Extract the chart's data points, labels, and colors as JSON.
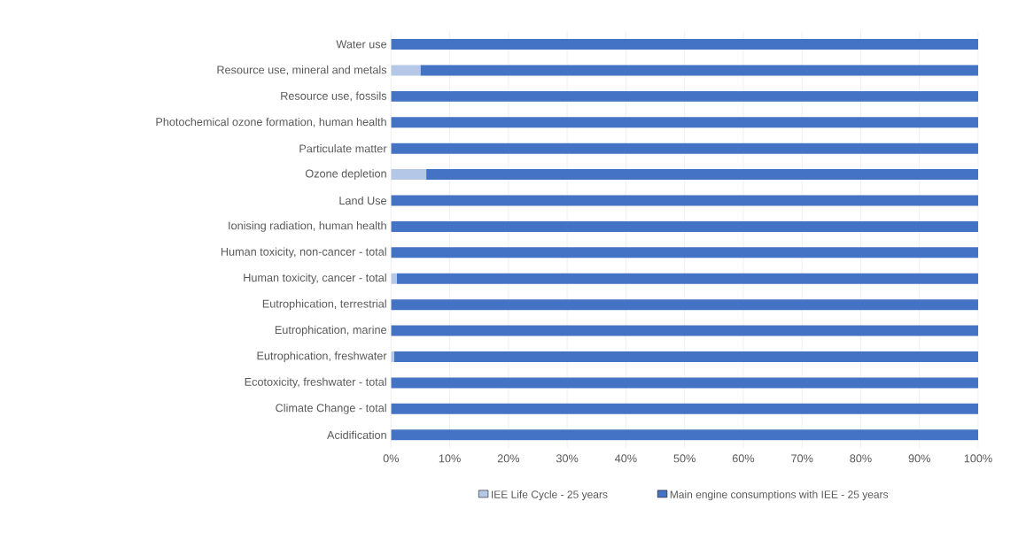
{
  "chart_data": {
    "type": "bar",
    "orientation": "horizontal",
    "stacked": true,
    "categories": [
      "Water use",
      "Resource use, mineral and metals",
      "Resource use, fossils",
      "Photochemical ozone formation, human health",
      "Particulate matter",
      "Ozone depletion",
      "Land Use",
      "Ionising radiation, human health",
      "Human toxicity, non-cancer - total",
      "Human toxicity, cancer - total",
      "Eutrophication, terrestrial",
      "Eutrophication, marine",
      "Eutrophication, freshwater",
      "Ecotoxicity, freshwater - total",
      "Climate Change - total",
      "Acidification"
    ],
    "series": [
      {
        "name": "IEE Life Cycle - 25 years",
        "color": "#b4c7e7",
        "values": [
          0,
          5,
          0,
          0,
          0,
          6,
          0,
          0,
          0,
          1,
          0,
          0,
          0.5,
          0,
          0,
          0
        ]
      },
      {
        "name": "Main engine consumptions with IEE - 25 years",
        "color": "#4472c4",
        "values": [
          100,
          95,
          100,
          100,
          100,
          94,
          100,
          100,
          100,
          99,
          100,
          100,
          99.5,
          100,
          100,
          100
        ]
      }
    ],
    "xlim": [
      0,
      100
    ],
    "xticks": [
      {
        "value": 0,
        "label": "0%"
      },
      {
        "value": 10,
        "label": "10%"
      },
      {
        "value": 20,
        "label": "20%"
      },
      {
        "value": 30,
        "label": "30%"
      },
      {
        "value": 40,
        "label": "40%"
      },
      {
        "value": 50,
        "label": "50%"
      },
      {
        "value": 60,
        "label": "60%"
      },
      {
        "value": 70,
        "label": "70%"
      },
      {
        "value": 80,
        "label": "80%"
      },
      {
        "value": 90,
        "label": "90%"
      },
      {
        "value": 100,
        "label": "100%"
      }
    ],
    "grid": "x",
    "legend": "bottom"
  }
}
